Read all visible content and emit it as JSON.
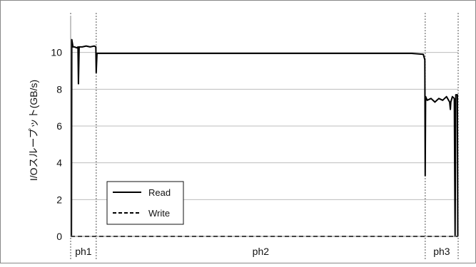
{
  "chart_data": {
    "type": "line",
    "ylabel": "I/Oスループット(GB/s)",
    "ylim": [
      0,
      12
    ],
    "yticks": [
      "0",
      "2",
      "4",
      "6",
      "8",
      "10"
    ],
    "grid": true,
    "legend_placement": "bottom-left",
    "series": [
      {
        "name": "Read",
        "line_style": "solid",
        "points": [
          [
            0.0,
            0.0
          ],
          [
            0.002,
            0.0
          ],
          [
            0.003,
            10.7
          ],
          [
            0.006,
            10.3
          ],
          [
            0.01,
            10.3
          ],
          [
            0.016,
            10.25
          ],
          [
            0.019,
            10.3
          ],
          [
            0.02,
            8.3
          ],
          [
            0.022,
            10.3
          ],
          [
            0.03,
            10.3
          ],
          [
            0.04,
            10.35
          ],
          [
            0.05,
            10.3
          ],
          [
            0.061,
            10.35
          ],
          [
            0.065,
            10.3
          ],
          [
            0.066,
            8.9
          ],
          [
            0.068,
            9.95
          ],
          [
            0.1,
            9.95
          ],
          [
            0.2,
            9.95
          ],
          [
            0.3,
            9.95
          ],
          [
            0.4,
            9.95
          ],
          [
            0.5,
            9.95
          ],
          [
            0.6,
            9.95
          ],
          [
            0.7,
            9.95
          ],
          [
            0.8,
            9.95
          ],
          [
            0.88,
            9.95
          ],
          [
            0.91,
            9.9
          ],
          [
            0.914,
            9.6
          ],
          [
            0.915,
            3.3
          ],
          [
            0.916,
            7.6
          ],
          [
            0.92,
            7.4
          ],
          [
            0.93,
            7.5
          ],
          [
            0.94,
            7.3
          ],
          [
            0.95,
            7.5
          ],
          [
            0.96,
            7.4
          ],
          [
            0.97,
            7.6
          ],
          [
            0.978,
            7.3
          ],
          [
            0.98,
            6.9
          ],
          [
            0.981,
            7.3
          ],
          [
            0.985,
            7.6
          ],
          [
            0.99,
            7.5
          ],
          [
            0.992,
            0.0
          ],
          [
            0.994,
            7.7
          ],
          [
            0.998,
            7.7
          ],
          [
            0.999,
            0.0
          ],
          [
            1.0,
            0.0
          ]
        ]
      },
      {
        "name": "Write",
        "line_style": "dashed",
        "points": [
          [
            0.0,
            0.0
          ],
          [
            1.0,
            0.0
          ]
        ]
      }
    ],
    "phases": [
      {
        "label": "ph1",
        "start": 0.0,
        "end": 0.066
      },
      {
        "label": "ph2",
        "start": 0.066,
        "end": 0.915
      },
      {
        "label": "ph3",
        "start": 0.915,
        "end": 1.0
      }
    ]
  },
  "colors": {
    "line": "#000000",
    "grid": "#bdbdbd",
    "frame": "#888888"
  }
}
